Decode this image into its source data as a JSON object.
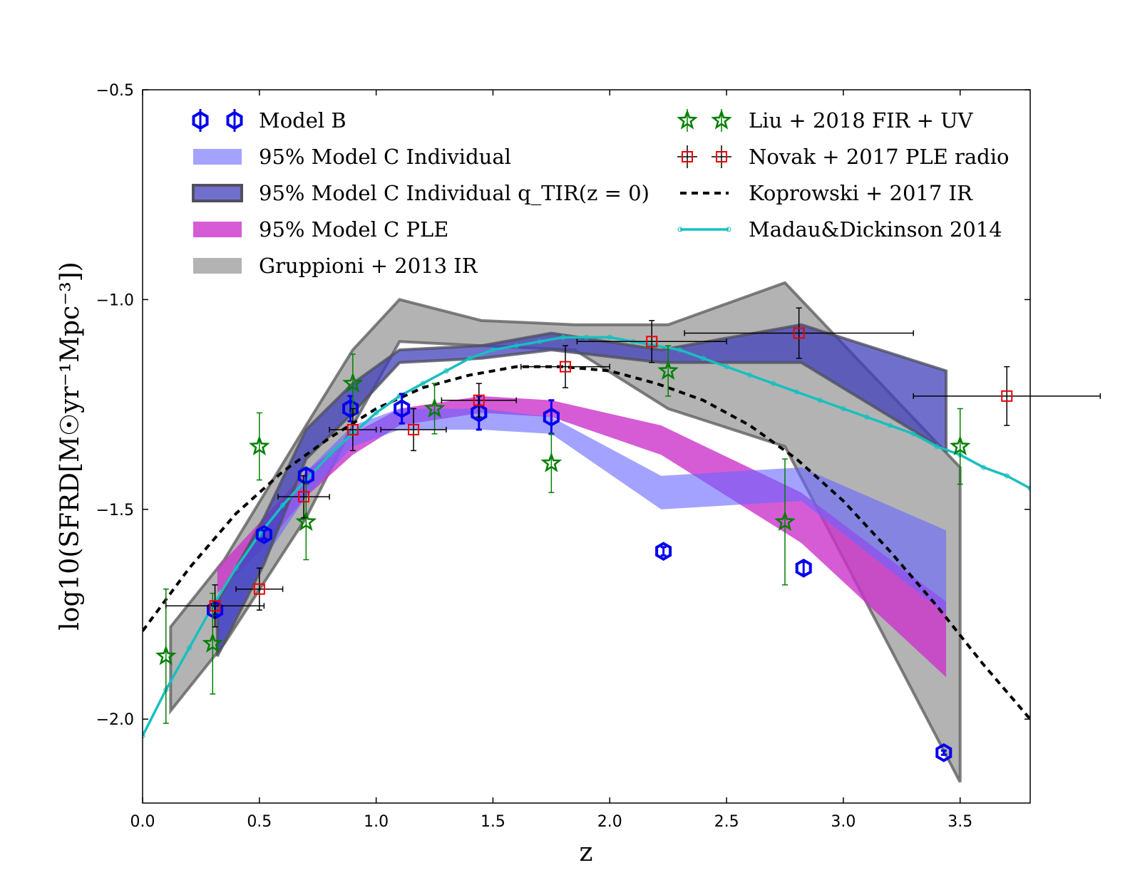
{
  "chart_data": {
    "type": "line",
    "xlabel": "z",
    "ylabel": "log10(SFRD[M☉yr⁻¹Mpc⁻³])",
    "xlim": [
      0.0,
      3.8
    ],
    "ylim": [
      -2.2,
      -0.5
    ],
    "xticks": [
      0.0,
      0.5,
      1.0,
      1.5,
      2.0,
      2.5,
      3.0,
      3.5
    ],
    "xtick_labels": [
      "0.0",
      "0.5",
      "1.0",
      "1.5",
      "2.0",
      "2.5",
      "3.0",
      "3.5"
    ],
    "yticks": [
      -0.5,
      -1.0,
      -1.5,
      -2.0
    ],
    "ytick_labels": [
      "−0.5",
      "−1.0",
      "−1.5",
      "−2.0"
    ],
    "bands": [
      {
        "name": "Gruppioni+2013 IR",
        "color": "#808080",
        "opacity": 0.6,
        "edge": "#606060",
        "x": [
          0.12,
          0.35,
          0.7,
          0.9,
          1.1,
          1.45,
          1.85,
          2.25,
          2.75,
          3.5
        ],
        "upper": [
          -1.78,
          -1.62,
          -1.3,
          -1.12,
          -1.0,
          -1.05,
          -1.06,
          -1.06,
          -0.96,
          -1.4
        ],
        "lower": [
          -1.98,
          -1.82,
          -1.52,
          -1.3,
          -1.1,
          -1.11,
          -1.12,
          -1.26,
          -1.35,
          -2.15
        ]
      },
      {
        "name": "95% Model C PLE",
        "color": "#cc33cc",
        "opacity": 0.8,
        "edge": "none",
        "x": [
          0.32,
          0.52,
          0.7,
          0.9,
          1.1,
          1.45,
          1.75,
          2.22,
          2.82,
          3.44
        ],
        "upper": [
          -1.64,
          -1.52,
          -1.41,
          -1.32,
          -1.26,
          -1.23,
          -1.24,
          -1.3,
          -1.46,
          -1.72
        ],
        "lower": [
          -1.7,
          -1.59,
          -1.47,
          -1.37,
          -1.3,
          -1.27,
          -1.28,
          -1.37,
          -1.58,
          -1.9
        ]
      },
      {
        "name": "95% Model C Individual",
        "color": "#6666ff",
        "opacity": 0.6,
        "edge": "none",
        "x": [
          0.32,
          0.52,
          0.7,
          0.9,
          1.1,
          1.45,
          1.75,
          2.22,
          2.82,
          3.44
        ],
        "upper": [
          -1.72,
          -1.55,
          -1.41,
          -1.3,
          -1.26,
          -1.26,
          -1.28,
          -1.42,
          -1.4,
          -1.55
        ],
        "lower": [
          -1.84,
          -1.62,
          -1.47,
          -1.35,
          -1.31,
          -1.31,
          -1.32,
          -1.5,
          -1.48,
          -1.75
        ]
      },
      {
        "name": "95% Model C Individual q_TIR(z=0)",
        "color": "#4040bb",
        "opacity": 0.75,
        "edge": "#505060",
        "x": [
          0.32,
          0.52,
          0.7,
          0.9,
          1.1,
          1.45,
          1.75,
          2.22,
          2.82,
          3.44
        ],
        "upper": [
          -1.72,
          -1.52,
          -1.31,
          -1.2,
          -1.12,
          -1.11,
          -1.08,
          -1.12,
          -1.06,
          -1.17
        ],
        "lower": [
          -1.85,
          -1.63,
          -1.38,
          -1.27,
          -1.15,
          -1.14,
          -1.12,
          -1.15,
          -1.15,
          -1.36
        ]
      }
    ],
    "lines": [
      {
        "name": "Koprowski+2017 IR",
        "color": "#000000",
        "dashed": true,
        "x": [
          0.0,
          0.2,
          0.4,
          0.6,
          0.8,
          1.0,
          1.2,
          1.4,
          1.6,
          1.8,
          2.0,
          2.2,
          2.4,
          2.6,
          2.8,
          3.0,
          3.2,
          3.4,
          3.6,
          3.8
        ],
        "y": [
          -1.79,
          -1.64,
          -1.51,
          -1.41,
          -1.33,
          -1.26,
          -1.21,
          -1.18,
          -1.16,
          -1.16,
          -1.17,
          -1.2,
          -1.24,
          -1.3,
          -1.38,
          -1.48,
          -1.6,
          -1.73,
          -1.87,
          -2.0
        ]
      },
      {
        "name": "Madau&Dickinson 2014",
        "color": "#17bfbf",
        "dashed": false,
        "x": [
          0.0,
          0.1,
          0.2,
          0.3,
          0.4,
          0.5,
          0.6,
          0.7,
          0.8,
          0.9,
          1.0,
          1.1,
          1.2,
          1.3,
          1.4,
          1.5,
          1.6,
          1.7,
          1.8,
          1.9,
          2.0,
          2.1,
          2.2,
          2.3,
          2.4,
          2.5,
          2.6,
          2.7,
          2.8,
          2.9,
          3.0,
          3.1,
          3.2,
          3.3,
          3.4,
          3.5,
          3.6,
          3.7,
          3.8
        ],
        "y": [
          -2.04,
          -1.93,
          -1.83,
          -1.73,
          -1.64,
          -1.56,
          -1.49,
          -1.43,
          -1.37,
          -1.32,
          -1.27,
          -1.23,
          -1.2,
          -1.17,
          -1.14,
          -1.12,
          -1.11,
          -1.1,
          -1.09,
          -1.09,
          -1.09,
          -1.1,
          -1.11,
          -1.12,
          -1.14,
          -1.16,
          -1.18,
          -1.2,
          -1.22,
          -1.24,
          -1.26,
          -1.28,
          -1.3,
          -1.32,
          -1.35,
          -1.37,
          -1.4,
          -1.42,
          -1.45
        ]
      }
    ],
    "series_points": [
      {
        "name": "Model B",
        "marker": "hexagon",
        "color": "#0000ee",
        "points": [
          {
            "x": 0.31,
            "y": -1.74,
            "yerr": 0.01
          },
          {
            "x": 0.52,
            "y": -1.56,
            "yerr": 0.01
          },
          {
            "x": 0.7,
            "y": -1.42,
            "yerr": 0.015
          },
          {
            "x": 0.89,
            "y": -1.26,
            "yerr": 0.03
          },
          {
            "x": 1.11,
            "y": -1.26,
            "yerr": 0.035
          },
          {
            "x": 1.44,
            "y": -1.27,
            "yerr": 0.04
          },
          {
            "x": 1.75,
            "y": -1.28,
            "yerr": 0.04
          },
          {
            "x": 2.23,
            "y": -1.6,
            "yerr": 0.01
          },
          {
            "x": 2.83,
            "y": -1.64,
            "yerr": 0.015
          },
          {
            "x": 3.43,
            "y": -2.08,
            "yerr": 0.005
          }
        ]
      },
      {
        "name": "Liu+2018 FIR+UV",
        "marker": "star",
        "color": "#008000",
        "points": [
          {
            "x": 0.1,
            "y": -1.85,
            "yerr": 0.16
          },
          {
            "x": 0.3,
            "y": -1.82,
            "yerr": 0.12
          },
          {
            "x": 0.5,
            "y": -1.35,
            "yerr": 0.08
          },
          {
            "x": 0.7,
            "y": -1.53,
            "yerr": 0.09
          },
          {
            "x": 0.9,
            "y": -1.2,
            "yerr": 0.07
          },
          {
            "x": 1.25,
            "y": -1.26,
            "yerr": 0.06
          },
          {
            "x": 1.75,
            "y": -1.39,
            "yerr": 0.07
          },
          {
            "x": 2.25,
            "y": -1.17,
            "yerr": 0.06
          },
          {
            "x": 2.75,
            "y": -1.53,
            "yerr": 0.15
          },
          {
            "x": 3.5,
            "y": -1.35,
            "yerr": 0.09
          }
        ]
      },
      {
        "name": "Novak+2017 PLE radio",
        "marker": "square",
        "color": "#ee0000",
        "points": [
          {
            "x": 0.31,
            "y": -1.73,
            "xerr": 0.21,
            "yerr": 0.05
          },
          {
            "x": 0.5,
            "y": -1.69,
            "xerr": 0.1,
            "yerr": 0.05
          },
          {
            "x": 0.69,
            "y": -1.47,
            "xerr": 0.11,
            "yerr": 0.05
          },
          {
            "x": 0.9,
            "y": -1.31,
            "xerr": 0.1,
            "yerr": 0.05
          },
          {
            "x": 1.16,
            "y": -1.31,
            "xerr": 0.14,
            "yerr": 0.05
          },
          {
            "x": 1.44,
            "y": -1.24,
            "xerr": 0.16,
            "yerr": 0.04
          },
          {
            "x": 1.81,
            "y": -1.16,
            "xerr": 0.19,
            "yerr": 0.05
          },
          {
            "x": 2.18,
            "y": -1.1,
            "xerr": 0.32,
            "yerr": 0.05
          },
          {
            "x": 2.81,
            "y": -1.08,
            "xerr": 0.49,
            "yerr": 0.06
          },
          {
            "x": 3.7,
            "y": -1.23,
            "xerr": 0.4,
            "yerr": 0.07
          }
        ]
      }
    ],
    "legend_left": [
      {
        "label": "Model B",
        "symbol": "hexagon"
      },
      {
        "label": "95% Model C Individual",
        "symbol": "patch-light"
      },
      {
        "label": "95% Model C Individual q_TIR(z = 0)",
        "symbol": "patch-dark"
      },
      {
        "label": "95% Model C PLE",
        "symbol": "patch-magenta"
      },
      {
        "label": "Gruppioni + 2013 IR",
        "symbol": "patch-gray"
      }
    ],
    "legend_right": [
      {
        "label": "Liu + 2018 FIR + UV",
        "symbol": "star"
      },
      {
        "label": "Novak + 2017 PLE radio",
        "symbol": "square"
      },
      {
        "label": "Koprowski + 2017 IR",
        "symbol": "dashed-line"
      },
      {
        "label": "Madau&Dickinson 2014",
        "symbol": "cyan-line"
      }
    ],
    "legend_placement": "top"
  }
}
